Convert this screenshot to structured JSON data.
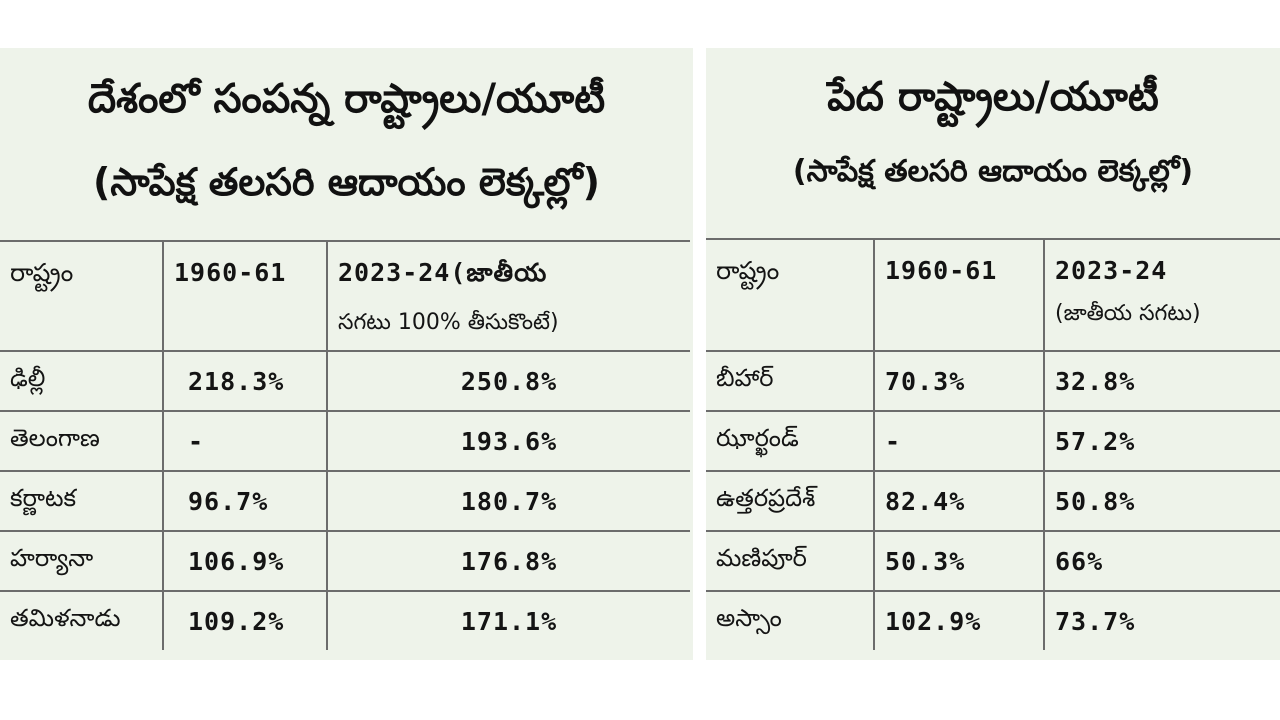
{
  "left": {
    "title_line1": "దేశంలో సంపన్న రాష్ట్రాలు/యూటీ",
    "title_line2": "(సాపేక్ష తలసరి ఆదాయం లెక్కల్లో)",
    "headers": {
      "col1": "రాష్ట్రం",
      "col2": "1960-61",
      "col3_line1": "2023-24(జాతీయ",
      "col3_line2": "సగటు 100% తీసుకొంటే)"
    },
    "rows": [
      {
        "state": "ఢిల్లీ",
        "v1960": "218.3%",
        "v2023": "250.8%"
      },
      {
        "state": "తెలంగాణ",
        "v1960": "-",
        "v2023": "193.6%"
      },
      {
        "state": "కర్ణాటక",
        "v1960": "96.7%",
        "v2023": "180.7%"
      },
      {
        "state": "హర్యానా",
        "v1960": "106.9%",
        "v2023": "176.8%"
      },
      {
        "state": "తమిళనాడు",
        "v1960": "109.2%",
        "v2023": "171.1%"
      }
    ]
  },
  "right": {
    "title_line1": "పేద రాష్ట్రాలు/యూటీ",
    "title_line2": "(సాపేక్ష తలసరి ఆదాయం లెక్కల్లో)",
    "headers": {
      "col1": "రాష్ట్రం",
      "col2": "1960-61",
      "col3_line1": "2023-24",
      "col3_line2": "(జాతీయ సగటు)"
    },
    "rows": [
      {
        "state": "బీహార్",
        "v1960": "70.3%",
        "v2023": "32.8%"
      },
      {
        "state": "ఝార్ఖండ్",
        "v1960": "-",
        "v2023": "57.2%"
      },
      {
        "state": "ఉత్తరప్రదేశ్",
        "v1960": "82.4%",
        "v2023": "50.8%"
      },
      {
        "state": "మణిపూర్",
        "v1960": "50.3%",
        "v2023": "66%"
      },
      {
        "state": "అస్సాం",
        "v1960": "102.9%",
        "v2023": "73.7%"
      }
    ]
  }
}
